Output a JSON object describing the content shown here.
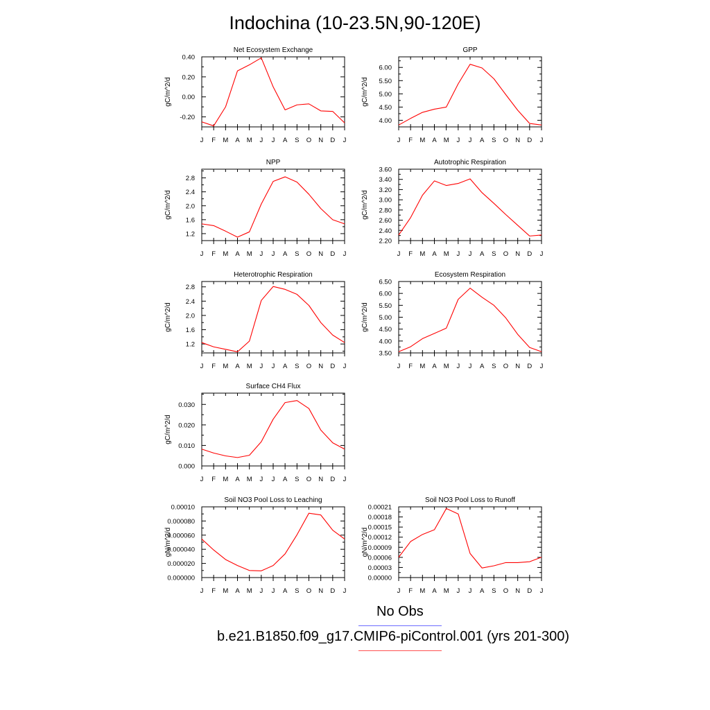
{
  "page": {
    "title": "Indochina (10-23.5N,90-120E)",
    "legend": [
      {
        "label": "No Obs",
        "color": "#6c6cff"
      },
      {
        "label": "b.e21.B1850.f09_g17.CMIP6-piControl.001 (yrs 201-300)",
        "color": "#ff5050"
      }
    ]
  },
  "chart_data": [
    {
      "type": "line",
      "title": "Net Ecosystem Exchange",
      "ylabel": "gC/m^2/d",
      "x": [
        "J",
        "F",
        "M",
        "A",
        "M",
        "J",
        "J",
        "A",
        "S",
        "O",
        "N",
        "D",
        "J"
      ],
      "yticks": [
        "0.40",
        "0.20",
        "0.00",
        "-0.20"
      ],
      "ytick_values": [
        0.4,
        0.2,
        0.0,
        -0.2
      ],
      "ylim": [
        -0.3,
        0.4
      ],
      "series": [
        {
          "color": "#ff0000",
          "values": [
            -0.25,
            -0.29,
            -0.1,
            0.26,
            0.32,
            0.39,
            0.1,
            -0.13,
            -0.08,
            -0.07,
            -0.14,
            -0.145,
            -0.26
          ]
        }
      ]
    },
    {
      "type": "line",
      "title": "GPP",
      "ylabel": "gC/m^2/d",
      "x": [
        "J",
        "F",
        "M",
        "A",
        "M",
        "J",
        "J",
        "A",
        "S",
        "O",
        "N",
        "D",
        "J"
      ],
      "yticks": [
        "6.00",
        "5.50",
        "5.00",
        "4.50",
        "4.00"
      ],
      "ytick_values": [
        6.0,
        5.5,
        5.0,
        4.5,
        4.0
      ],
      "ylim": [
        3.75,
        6.4
      ],
      "series": [
        {
          "color": "#ff0000",
          "values": [
            3.82,
            4.07,
            4.3,
            4.42,
            4.5,
            5.38,
            6.12,
            5.98,
            5.57,
            4.97,
            4.38,
            3.88,
            3.82
          ]
        }
      ]
    },
    {
      "type": "line",
      "title": "NPP",
      "ylabel": "gC/m^2/d",
      "x": [
        "J",
        "F",
        "M",
        "A",
        "M",
        "J",
        "J",
        "A",
        "S",
        "O",
        "N",
        "D",
        "J"
      ],
      "yticks": [
        "2.8",
        "2.4",
        "2.0",
        "1.6",
        "1.2"
      ],
      "ytick_values": [
        2.8,
        2.4,
        2.0,
        1.6,
        1.2
      ],
      "ylim": [
        1.0,
        3.05
      ],
      "series": [
        {
          "color": "#ff0000",
          "values": [
            1.48,
            1.43,
            1.27,
            1.1,
            1.25,
            2.05,
            2.7,
            2.83,
            2.68,
            2.33,
            1.92,
            1.6,
            1.48
          ]
        }
      ]
    },
    {
      "type": "line",
      "title": "Autotrophic Respiration",
      "ylabel": "gC/m^2/d",
      "x": [
        "J",
        "F",
        "M",
        "A",
        "M",
        "J",
        "J",
        "A",
        "S",
        "O",
        "N",
        "D",
        "J"
      ],
      "yticks": [
        "3.60",
        "3.40",
        "3.20",
        "3.00",
        "2.80",
        "2.60",
        "2.40",
        "2.20"
      ],
      "ytick_values": [
        3.6,
        3.4,
        3.2,
        3.0,
        2.8,
        2.6,
        2.4,
        2.2
      ],
      "ylim": [
        2.2,
        3.6
      ],
      "series": [
        {
          "color": "#ff0000",
          "values": [
            2.31,
            2.65,
            3.09,
            3.37,
            3.28,
            3.32,
            3.41,
            3.14,
            2.93,
            2.71,
            2.5,
            2.29,
            2.31
          ]
        }
      ]
    },
    {
      "type": "line",
      "title": "Heterotrophic Respiration",
      "ylabel": "gC/m^2/d",
      "x": [
        "J",
        "F",
        "M",
        "A",
        "M",
        "J",
        "J",
        "A",
        "S",
        "O",
        "N",
        "D",
        "J"
      ],
      "yticks": [
        "2.8",
        "2.4",
        "2.0",
        "1.6",
        "1.2"
      ],
      "ytick_values": [
        2.8,
        2.4,
        2.0,
        1.6,
        1.2
      ],
      "ylim": [
        0.95,
        2.95
      ],
      "series": [
        {
          "color": "#ff0000",
          "values": [
            1.24,
            1.12,
            1.05,
            0.98,
            1.28,
            2.42,
            2.81,
            2.73,
            2.59,
            2.28,
            1.8,
            1.45,
            1.24
          ]
        }
      ]
    },
    {
      "type": "line",
      "title": "Ecosystem Respiration",
      "ylabel": "gC/m^2/d",
      "x": [
        "J",
        "F",
        "M",
        "A",
        "M",
        "J",
        "J",
        "A",
        "S",
        "O",
        "N",
        "D",
        "J"
      ],
      "yticks": [
        "6.50",
        "6.00",
        "5.50",
        "5.00",
        "4.50",
        "4.00",
        "3.50"
      ],
      "ytick_values": [
        6.5,
        6.0,
        5.5,
        5.0,
        4.5,
        4.0,
        3.5
      ],
      "ylim": [
        3.5,
        6.5
      ],
      "series": [
        {
          "color": "#ff0000",
          "values": [
            3.55,
            3.76,
            4.1,
            4.32,
            4.54,
            5.75,
            6.22,
            5.84,
            5.5,
            4.97,
            4.28,
            3.73,
            3.55
          ]
        }
      ]
    },
    {
      "type": "line",
      "title": "Surface CH4 Flux",
      "ylabel": "gC/m^2/d",
      "x": [
        "J",
        "F",
        "M",
        "A",
        "M",
        "J",
        "J",
        "A",
        "S",
        "O",
        "N",
        "D",
        "J"
      ],
      "yticks": [
        "0.030",
        "0.020",
        "0.010",
        "0.000"
      ],
      "ytick_values": [
        0.03,
        0.02,
        0.01,
        0.0
      ],
      "ylim": [
        0.0,
        0.0355
      ],
      "series": [
        {
          "color": "#ff0000",
          "values": [
            0.0082,
            0.0063,
            0.0049,
            0.0041,
            0.0052,
            0.0118,
            0.0228,
            0.0309,
            0.0319,
            0.028,
            0.0175,
            0.0113,
            0.0082
          ]
        }
      ]
    },
    {
      "type": "line",
      "title": "Soil NO3 Pool Loss to Leaching",
      "ylabel": "gN/m^2/d",
      "x": [
        "J",
        "F",
        "M",
        "A",
        "M",
        "J",
        "J",
        "A",
        "S",
        "O",
        "N",
        "D",
        "J"
      ],
      "yticks": [
        "0.00010",
        "0.000080",
        "0.000060",
        "0.000040",
        "0.000020",
        "0.000000"
      ],
      "ytick_values": [
        0.0001,
        8e-05,
        6e-05,
        4e-05,
        2e-05,
        0.0
      ],
      "ylim": [
        0.0,
        0.0001
      ],
      "series": [
        {
          "color": "#ff0000",
          "values": [
            5.45e-05,
            3.9e-05,
            2.55e-05,
            1.7e-05,
            1e-05,
            9.5e-06,
            1.7e-05,
            3.35e-05,
            6.05e-05,
            9.1e-05,
            8.85e-05,
            6.7e-05,
            5.45e-05
          ]
        }
      ]
    },
    {
      "type": "line",
      "title": "Soil NO3 Pool Loss to Runoff",
      "ylabel": "gN/m^2/d",
      "x": [
        "J",
        "F",
        "M",
        "A",
        "M",
        "J",
        "J",
        "A",
        "S",
        "O",
        "N",
        "D",
        "J"
      ],
      "yticks": [
        "0.00021",
        "0.00018",
        "0.00015",
        "0.00012",
        "0.00009",
        "0.00006",
        "0.00003",
        "0.00000"
      ],
      "ytick_values": [
        0.00021,
        0.00018,
        0.00015,
        0.00012,
        9e-05,
        6e-05,
        3e-05,
        0.0
      ],
      "ylim": [
        0.0,
        0.00021
      ],
      "series": [
        {
          "color": "#ff0000",
          "values": [
            6.05e-05,
            0.000107,
            0.000128,
            0.000142,
            0.000205,
            0.000189,
            7.15e-05,
            2.85e-05,
            3.5e-05,
            4.45e-05,
            4.45e-05,
            4.7e-05,
            6.05e-05
          ]
        }
      ]
    }
  ]
}
